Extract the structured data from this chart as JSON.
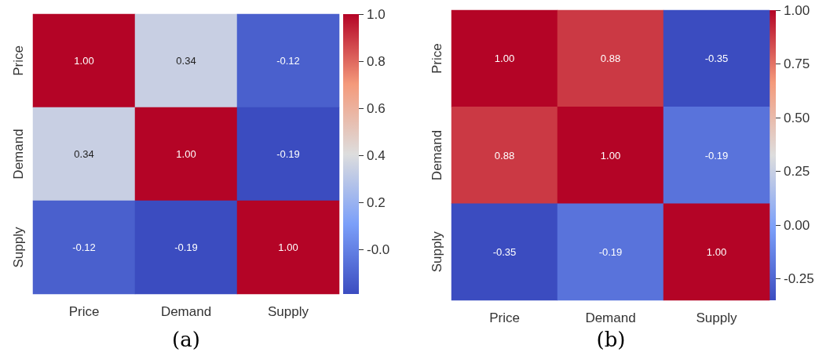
{
  "chart_data": [
    {
      "type": "heatmap",
      "categories": [
        "Price",
        "Demand",
        "Supply"
      ],
      "y_categories": [
        "Price",
        "Demand",
        "Supply"
      ],
      "cells": [
        [
          1.0,
          0.34,
          -0.12
        ],
        [
          0.34,
          1.0,
          -0.19
        ],
        [
          -0.12,
          -0.19,
          1.0
        ]
      ],
      "cell_labels": [
        [
          "1.00",
          "0.34",
          "-0.12"
        ],
        [
          "0.34",
          "1.00",
          "-0.19"
        ],
        [
          "-0.12",
          "-0.19",
          "1.00"
        ]
      ],
      "clim": [
        -0.19,
        1.0
      ],
      "cticks": [
        {
          "value": 0,
          "label": "-0.0"
        },
        {
          "value": 0.2,
          "label": "0.2"
        },
        {
          "value": 0.4,
          "label": "0.4"
        },
        {
          "value": 0.6,
          "label": "0.6"
        },
        {
          "value": 0.8,
          "label": "0.8"
        },
        {
          "value": 1.0,
          "label": "1.0"
        }
      ],
      "annotations": [
        "(a)"
      ]
    },
    {
      "type": "heatmap",
      "categories": [
        "Price",
        "Demand",
        "Supply"
      ],
      "y_categories": [
        "Price",
        "Demand",
        "Supply"
      ],
      "cells": [
        [
          1.0,
          0.88,
          -0.35
        ],
        [
          0.88,
          1.0,
          -0.19
        ],
        [
          -0.35,
          -0.19,
          1.0
        ]
      ],
      "cell_labels": [
        [
          "1.00",
          "0.88",
          "-0.35"
        ],
        [
          "0.88",
          "1.00",
          "-0.19"
        ],
        [
          "-0.35",
          "-0.19",
          "1.00"
        ]
      ],
      "clim": [
        -0.35,
        1.0
      ],
      "cticks": [
        {
          "value": -0.25,
          "label": "-0.25"
        },
        {
          "value": 0,
          "label": "0.00"
        },
        {
          "value": 0.25,
          "label": "0.25"
        },
        {
          "value": 0.5,
          "label": "0.50"
        },
        {
          "value": 0.75,
          "label": "0.75"
        },
        {
          "value": 1.0,
          "label": "1.00"
        }
      ],
      "annotations": [
        "(b)"
      ]
    }
  ]
}
